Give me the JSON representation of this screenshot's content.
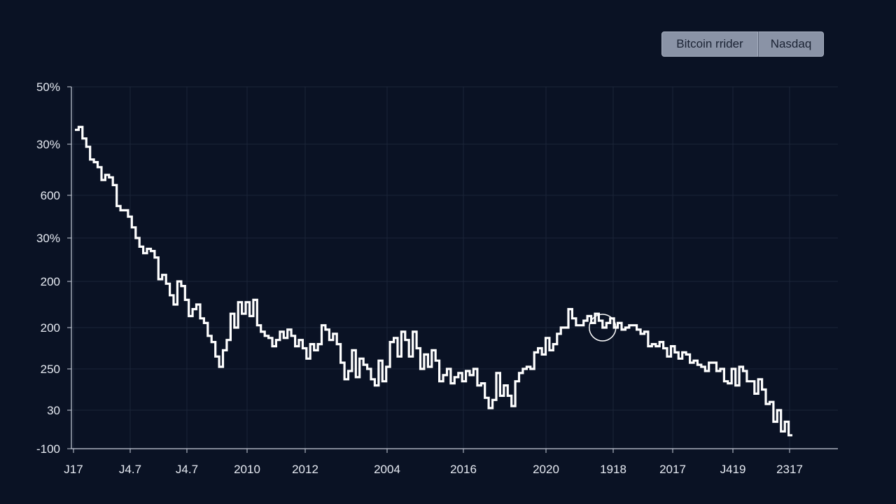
{
  "legend": {
    "bitcoin_label": "Bitcoin rrider",
    "nasdaq_label": "Nasdaq"
  },
  "colors": {
    "background": "#0a1224",
    "line": "#ffffff",
    "grid": "#1b2438",
    "axis": "#c9d0dc"
  },
  "chart_data": {
    "type": "line",
    "title": "",
    "xlabel": "",
    "ylabel": "",
    "grid": true,
    "legend_position": "top-right",
    "x_tick_labels": [
      "J17",
      "J4.7",
      "J4.7",
      "2010",
      "2012",
      "2004",
      "2016",
      "2020",
      "1918",
      "2017",
      "J419",
      "2317"
    ],
    "y_tick_labels": [
      "50%",
      "30%",
      "600",
      "30%",
      "200",
      "200",
      "250",
      "30",
      "-100"
    ],
    "y_range_index": [
      0,
      8
    ],
    "highlight_point_index": 139,
    "series": [
      {
        "values": [
          7.65,
          7.65,
          7.3,
          7.55,
          7.0,
          7.3,
          6.8,
          6.85,
          6.5,
          6.25,
          6.6,
          6.3,
          6.3,
          6.05,
          5.95,
          6.4,
          6.0,
          6.35,
          6.3,
          6.0,
          6.05,
          5.85,
          5.85,
          6.05,
          5.95,
          5.9,
          5.8,
          5.85,
          5.65,
          5.6,
          5.75,
          5.6,
          5.45,
          5.7,
          5.5,
          5.35,
          5.45,
          5.4,
          5.45,
          5.1,
          5.15,
          5.05,
          4.95,
          4.95,
          5.0,
          5.05,
          4.9,
          5.0,
          4.8,
          4.9,
          5.0,
          4.85,
          4.7,
          4.9,
          4.75,
          4.85,
          4.95,
          4.95,
          4.8,
          4.6,
          5.0,
          5.0,
          5.15,
          5.4,
          5.55,
          5.25,
          5.65,
          5.5,
          5.6,
          6.0,
          5.95,
          6.0,
          6.1,
          6.3,
          6.9,
          6.65,
          6.4,
          6.65,
          6.1,
          6.75,
          6.95,
          6.7,
          6.35,
          6.4,
          6.0,
          6.15,
          6.05,
          6.3,
          6.1,
          6.2,
          6.35,
          6.0,
          6.15,
          6.3,
          5.8,
          5.55,
          5.95,
          5.65,
          6.0,
          5.5,
          5.1,
          5.7,
          5.3,
          5.1,
          5.7,
          5.25,
          5.35,
          5.95,
          6.3,
          5.8,
          6.4,
          6.25,
          6.0,
          5.9,
          5.75,
          6.2,
          5.55,
          6.05,
          6.25,
          5.85,
          5.4,
          5.15,
          5.3,
          5.05,
          4.95,
          5.4,
          5.55,
          5.4,
          5.75,
          5.5,
          5.3,
          5.45,
          5.2,
          5.05,
          5.25,
          5.1,
          5.3,
          5.45,
          5.25,
          5.2,
          5.1,
          4.95,
          4.4,
          4.75,
          4.45,
          4.7,
          4.45,
          5.0,
          4.7,
          5.3,
          5.55,
          5.95,
          5.7,
          5.35,
          5.2,
          4.9,
          4.8,
          4.5,
          4.6,
          4.75,
          4.4,
          4.1,
          4.0,
          4.5,
          4.3,
          4.05,
          3.85,
          3.95,
          3.45,
          3.3,
          3.25,
          3.35,
          3.2,
          3.0,
          2.75,
          2.5,
          2.35,
          2.35,
          2.25,
          1.8,
          1.65,
          1.6,
          1.7,
          1.45,
          1.35,
          1.3,
          1.05,
          0.9,
          0.7,
          0.75
        ]
      }
    ]
  }
}
